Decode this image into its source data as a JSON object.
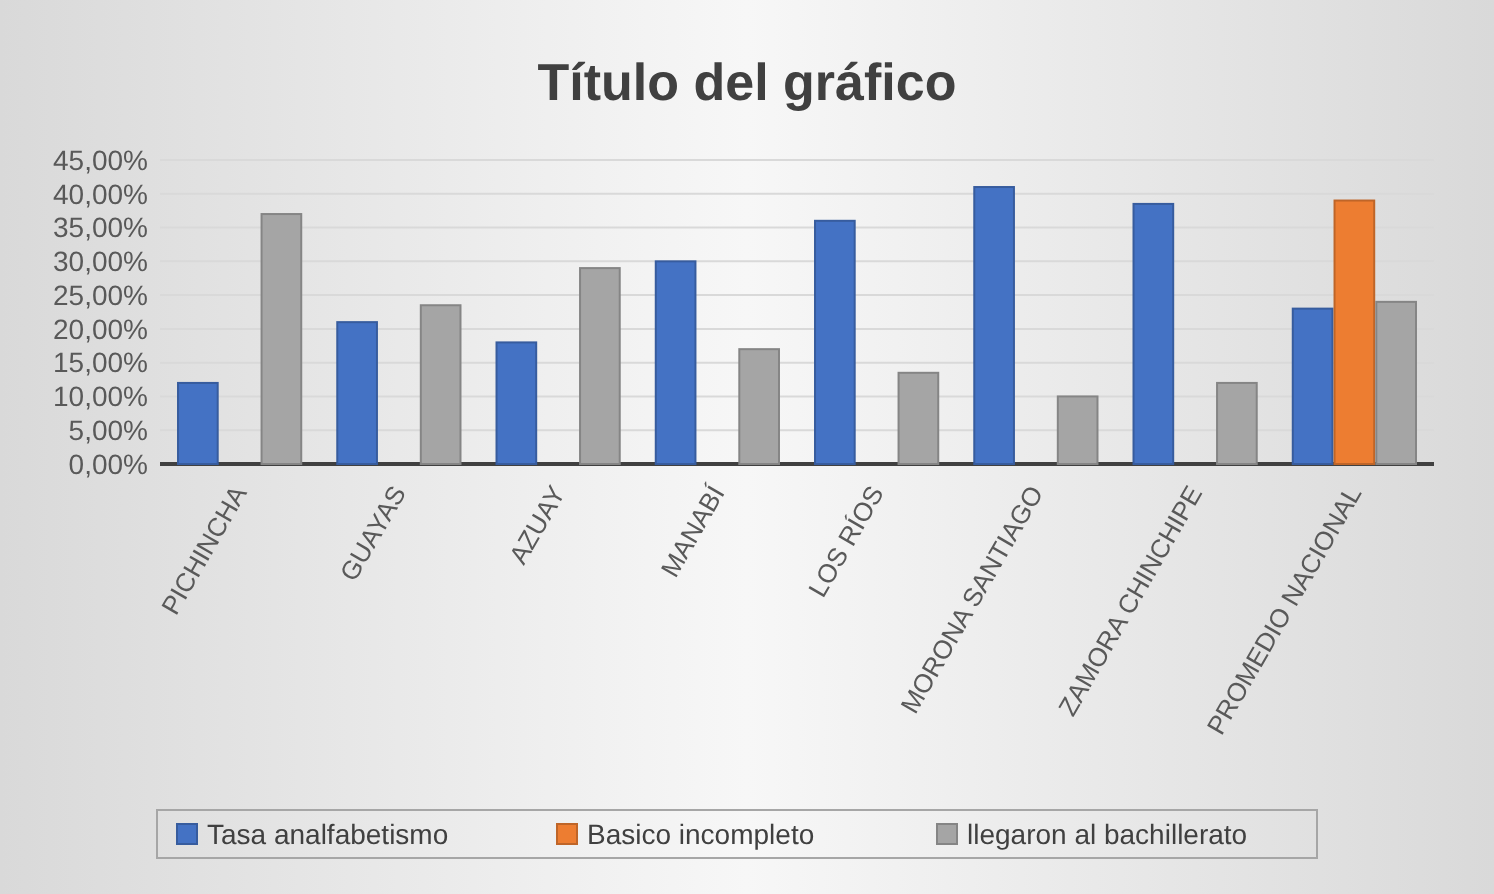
{
  "chart_data": {
    "type": "bar",
    "title": "Título del gráfico",
    "categories": [
      "PICHINCHA",
      "GUAYAS",
      "AZUAY",
      "MANABÍ",
      "LOS RÍOS",
      "MORONA SANTIAGO",
      "ZAMORA CHINCHIPE",
      "PROMEDIO NACIONAL"
    ],
    "series": [
      {
        "name": "Tasa analfabetismo",
        "color": "#4472c4",
        "values": [
          12,
          21,
          18,
          30,
          36,
          41,
          38.5,
          23
        ]
      },
      {
        "name": "Basico incompleto",
        "color": "#ed7d31",
        "values": [
          0,
          0,
          0,
          0,
          0,
          0,
          0,
          39
        ]
      },
      {
        "name": "llegaron al bachillerato",
        "color": "#a5a5a5",
        "values": [
          37,
          23.5,
          29,
          17,
          13.5,
          10,
          12,
          24
        ]
      }
    ],
    "ylim": [
      0,
      45
    ],
    "yticks": [
      {
        "value": 0,
        "label": "0,00%"
      },
      {
        "value": 5,
        "label": "5,00%"
      },
      {
        "value": 10,
        "label": "10,00%"
      },
      {
        "value": 15,
        "label": "15,00%"
      },
      {
        "value": 20,
        "label": "20,00%"
      },
      {
        "value": 25,
        "label": "25,00%"
      },
      {
        "value": 30,
        "label": "30,00%"
      },
      {
        "value": 35,
        "label": "35,00%"
      },
      {
        "value": 40,
        "label": "40,00%"
      },
      {
        "value": 45,
        "label": "45,00%"
      }
    ],
    "grid": "y",
    "legend": "bottom"
  }
}
